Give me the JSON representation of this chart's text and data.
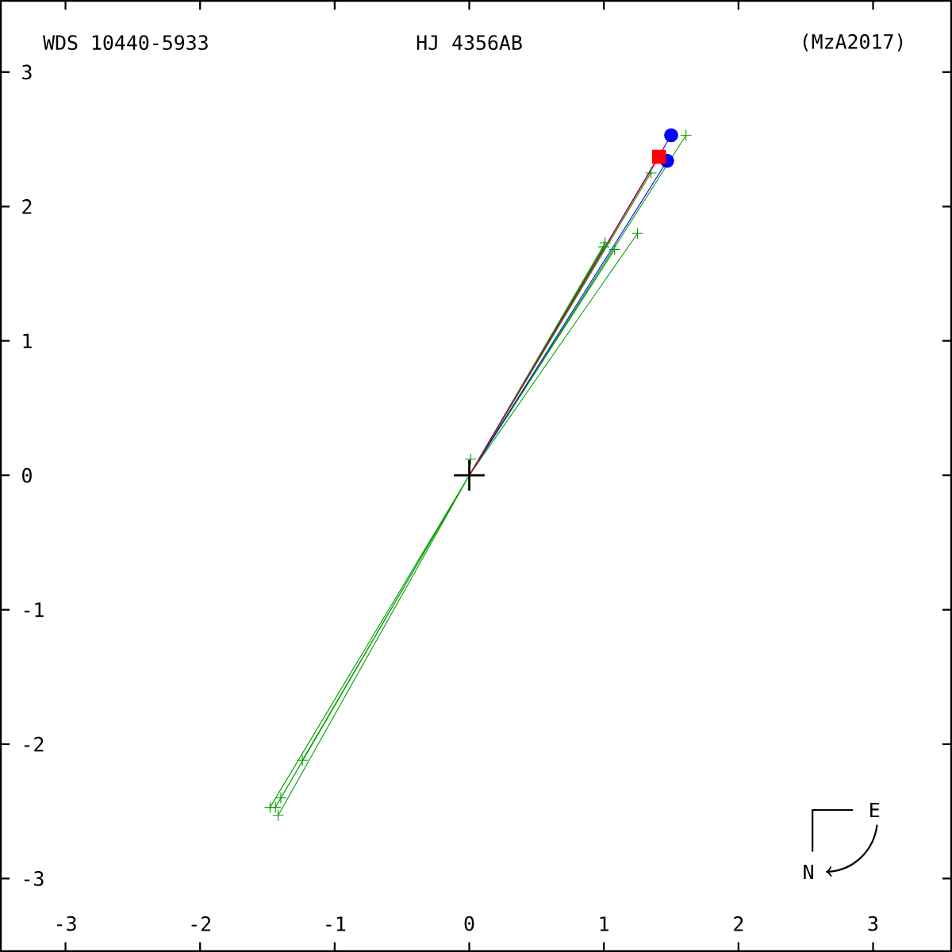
{
  "chart_data": {
    "type": "scatter",
    "title": "HJ 4356AB",
    "annotations": [
      "WDS 10440-5933",
      "(MzA2017)",
      "E",
      "N"
    ],
    "xlim": [
      -3.48,
      3.58
    ],
    "ylim": [
      -3.54,
      3.53
    ],
    "xticks": [
      -3,
      -2,
      -1,
      0,
      1,
      2,
      3
    ],
    "yticks": [
      -3,
      -2,
      -1,
      0,
      1,
      2,
      3
    ],
    "grid": false,
    "series": [
      {
        "type": "line",
        "color": "#00a000",
        "marker": "none",
        "x": [
          0,
          1.61,
          0,
          1.35,
          0,
          1.25,
          0,
          1.01,
          0,
          1.08,
          0,
          1.0,
          0,
          -1.44,
          0,
          -1.48,
          0,
          -1.42,
          0,
          -1.4,
          0,
          -1.24,
          0,
          0.01
        ],
        "values": [
          0,
          2.53,
          0,
          2.25,
          0,
          1.8,
          0,
          1.73,
          0,
          1.68,
          0,
          1.7,
          0,
          -2.47,
          0,
          -2.47,
          0,
          -2.53,
          0,
          -2.4,
          0,
          -2.12,
          0,
          0.12
        ]
      },
      {
        "color": "#00a000",
        "marker": "cross",
        "x": [
          1.61,
          1.35,
          1.25,
          1.01,
          1.08,
          1.0,
          -1.44,
          -1.48,
          -1.42,
          -1.4,
          -1.24,
          0.01
        ],
        "values": [
          2.53,
          2.25,
          1.8,
          1.73,
          1.68,
          1.7,
          -2.47,
          -2.47,
          -2.53,
          -2.4,
          -2.12,
          0.12
        ]
      },
      {
        "type": "line",
        "color": "#0000ff",
        "marker": "none",
        "x": [
          0,
          1.5,
          0,
          1.47
        ],
        "values": [
          0,
          2.53,
          0,
          2.34
        ]
      },
      {
        "color": "#0000ff",
        "marker": "circle",
        "x": [
          1.5,
          1.47
        ],
        "values": [
          2.53,
          2.34
        ]
      },
      {
        "type": "line",
        "color": "#ff0000",
        "marker": "none",
        "x": [
          0,
          1.41
        ],
        "values": [
          0,
          2.37
        ]
      },
      {
        "color": "#ff0000",
        "marker": "square",
        "x": [
          1.41
        ],
        "values": [
          2.37
        ]
      },
      {
        "color": "#000000",
        "marker": "cross",
        "x": [
          0
        ],
        "values": [
          0
        ]
      }
    ]
  }
}
